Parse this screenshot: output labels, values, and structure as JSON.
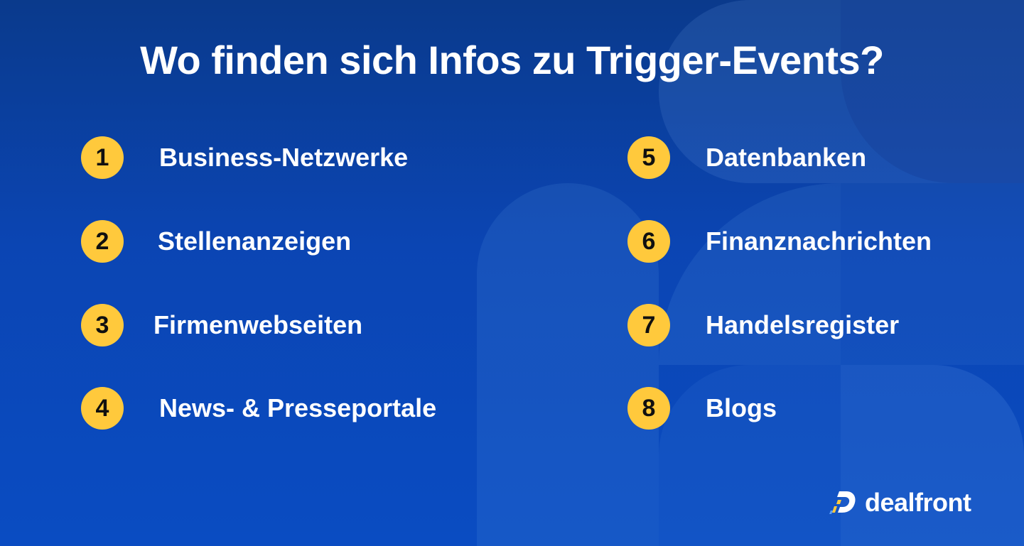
{
  "title": "Wo finden sich Infos zu Trigger-Events?",
  "items": [
    {
      "number": "1",
      "label": "Business-Netzwerke"
    },
    {
      "number": "2",
      "label": "Stellenanzeigen"
    },
    {
      "number": "3",
      "label": "Firmenwebseiten"
    },
    {
      "number": "4",
      "label": "News- & Presseportale"
    },
    {
      "number": "5",
      "label": "Datenbanken"
    },
    {
      "number": "6",
      "label": "Finanznachrichten"
    },
    {
      "number": "7",
      "label": "Handelsregister"
    },
    {
      "number": "8",
      "label": "Blogs"
    }
  ],
  "logo": {
    "text": "dealfront",
    "icon": "dealfront-logo-icon"
  },
  "colors": {
    "background_top": "#0a3a8c",
    "background_bottom": "#0a4cc2",
    "badge": "#ffc93c",
    "text": "#ffffff"
  }
}
